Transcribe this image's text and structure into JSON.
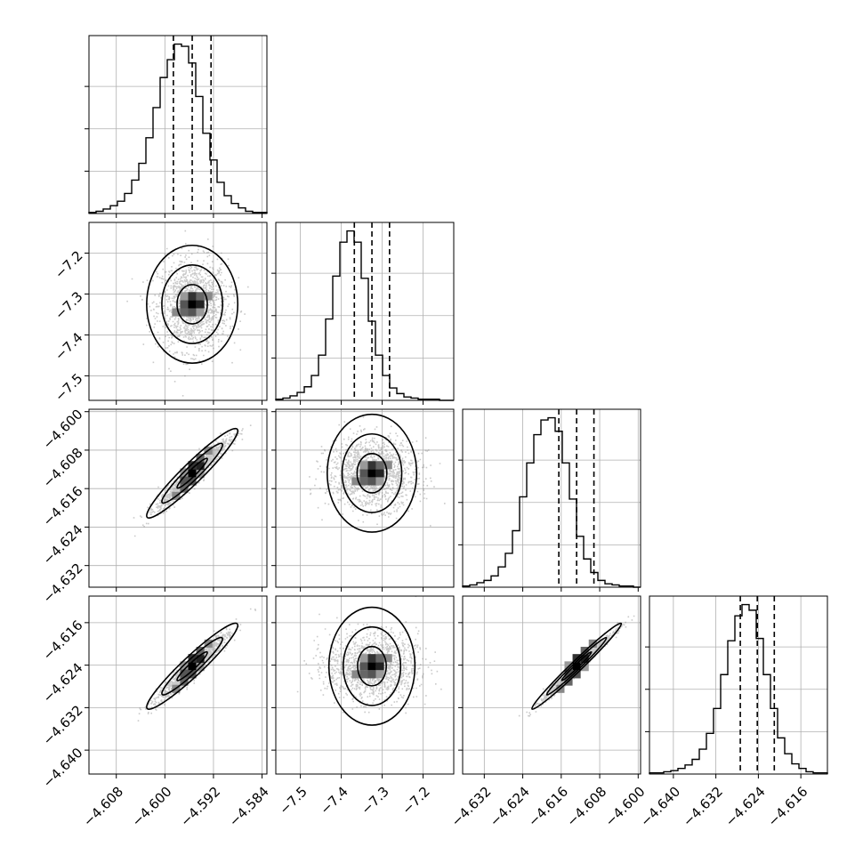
{
  "chart_data": {
    "type": "corner",
    "grid": true,
    "colors": {
      "line": "#000000",
      "grid": "#b0b0b0",
      "scatter": "#8a8a8a",
      "background": "#ffffff"
    },
    "parameters": [
      {
        "index": 0,
        "range": [
          -4.6125,
          -4.5832
        ],
        "ticks": [
          -4.608,
          -4.6,
          -4.592,
          -4.584
        ],
        "tick_labels": [
          "−4.608",
          "−4.600",
          "−4.592",
          "−4.584"
        ],
        "mean": -4.5955,
        "sd": 0.0025,
        "quantiles": [
          -4.5986,
          -4.5955,
          -4.5924
        ]
      },
      {
        "index": 1,
        "range": [
          -7.56,
          -7.125
        ],
        "ticks": [
          -7.5,
          -7.4,
          -7.3,
          -7.2
        ],
        "tick_labels": [
          "−7.5",
          "−7.4",
          "−7.3",
          "−7.2"
        ],
        "mean": -7.325,
        "sd": 0.048,
        "quantiles": [
          -7.368,
          -7.325,
          -7.282
        ]
      },
      {
        "index": 2,
        "range": [
          -4.6365,
          -4.5995
        ],
        "ticks": [
          -4.632,
          -4.624,
          -4.616,
          -4.608,
          -4.6
        ],
        "tick_labels": [
          "−4.632",
          "−4.624",
          "−4.616",
          "−4.608",
          "−4.600"
        ],
        "mean": -4.6128,
        "sd": 0.0031,
        "quantiles": [
          -4.6165,
          -4.6128,
          -4.6092
        ]
      },
      {
        "index": 3,
        "range": [
          -4.6445,
          -4.611
        ],
        "ticks": [
          -4.64,
          -4.632,
          -4.624,
          -4.616
        ],
        "tick_labels": [
          "−4.640",
          "−4.632",
          "−4.624",
          "−4.616"
        ],
        "mean": -4.6242,
        "sd": 0.0027,
        "quantiles": [
          -4.6274,
          -4.6242,
          -4.621
        ]
      }
    ],
    "correlations": [
      [
        1.0,
        0.0,
        0.95,
        0.95
      ],
      [
        0.0,
        1.0,
        0.0,
        0.0
      ],
      [
        0.95,
        0.0,
        1.0,
        0.985
      ],
      [
        0.95,
        0.0,
        0.985,
        1.0
      ]
    ],
    "histograms": [
      {
        "param": 0,
        "counts": [
          1,
          2,
          4,
          7,
          11,
          18,
          30,
          45,
          68,
          95,
          122,
          138,
          152,
          150,
          135,
          105,
          72,
          48,
          28,
          16,
          9,
          5,
          2,
          1,
          1
        ]
      },
      {
        "param": 1,
        "counts": [
          1,
          2,
          4,
          7,
          12,
          22,
          40,
          72,
          110,
          140,
          150,
          140,
          108,
          70,
          40,
          22,
          11,
          6,
          3,
          2,
          1,
          1,
          1,
          0,
          0
        ]
      },
      {
        "param": 2,
        "counts": [
          1,
          2,
          4,
          6,
          10,
          18,
          30,
          50,
          80,
          110,
          135,
          148,
          150,
          138,
          110,
          78,
          45,
          25,
          13,
          6,
          3,
          2,
          1,
          1,
          0
        ]
      },
      {
        "param": 3,
        "counts": [
          1,
          1,
          2,
          3,
          5,
          8,
          13,
          22,
          36,
          58,
          88,
          118,
          140,
          150,
          145,
          120,
          88,
          58,
          32,
          18,
          9,
          5,
          2,
          1,
          1
        ]
      }
    ],
    "contour_levels": [
      0.393,
      0.865,
      0.989
    ],
    "quantile_levels": [
      0.16,
      0.5,
      0.84
    ]
  }
}
